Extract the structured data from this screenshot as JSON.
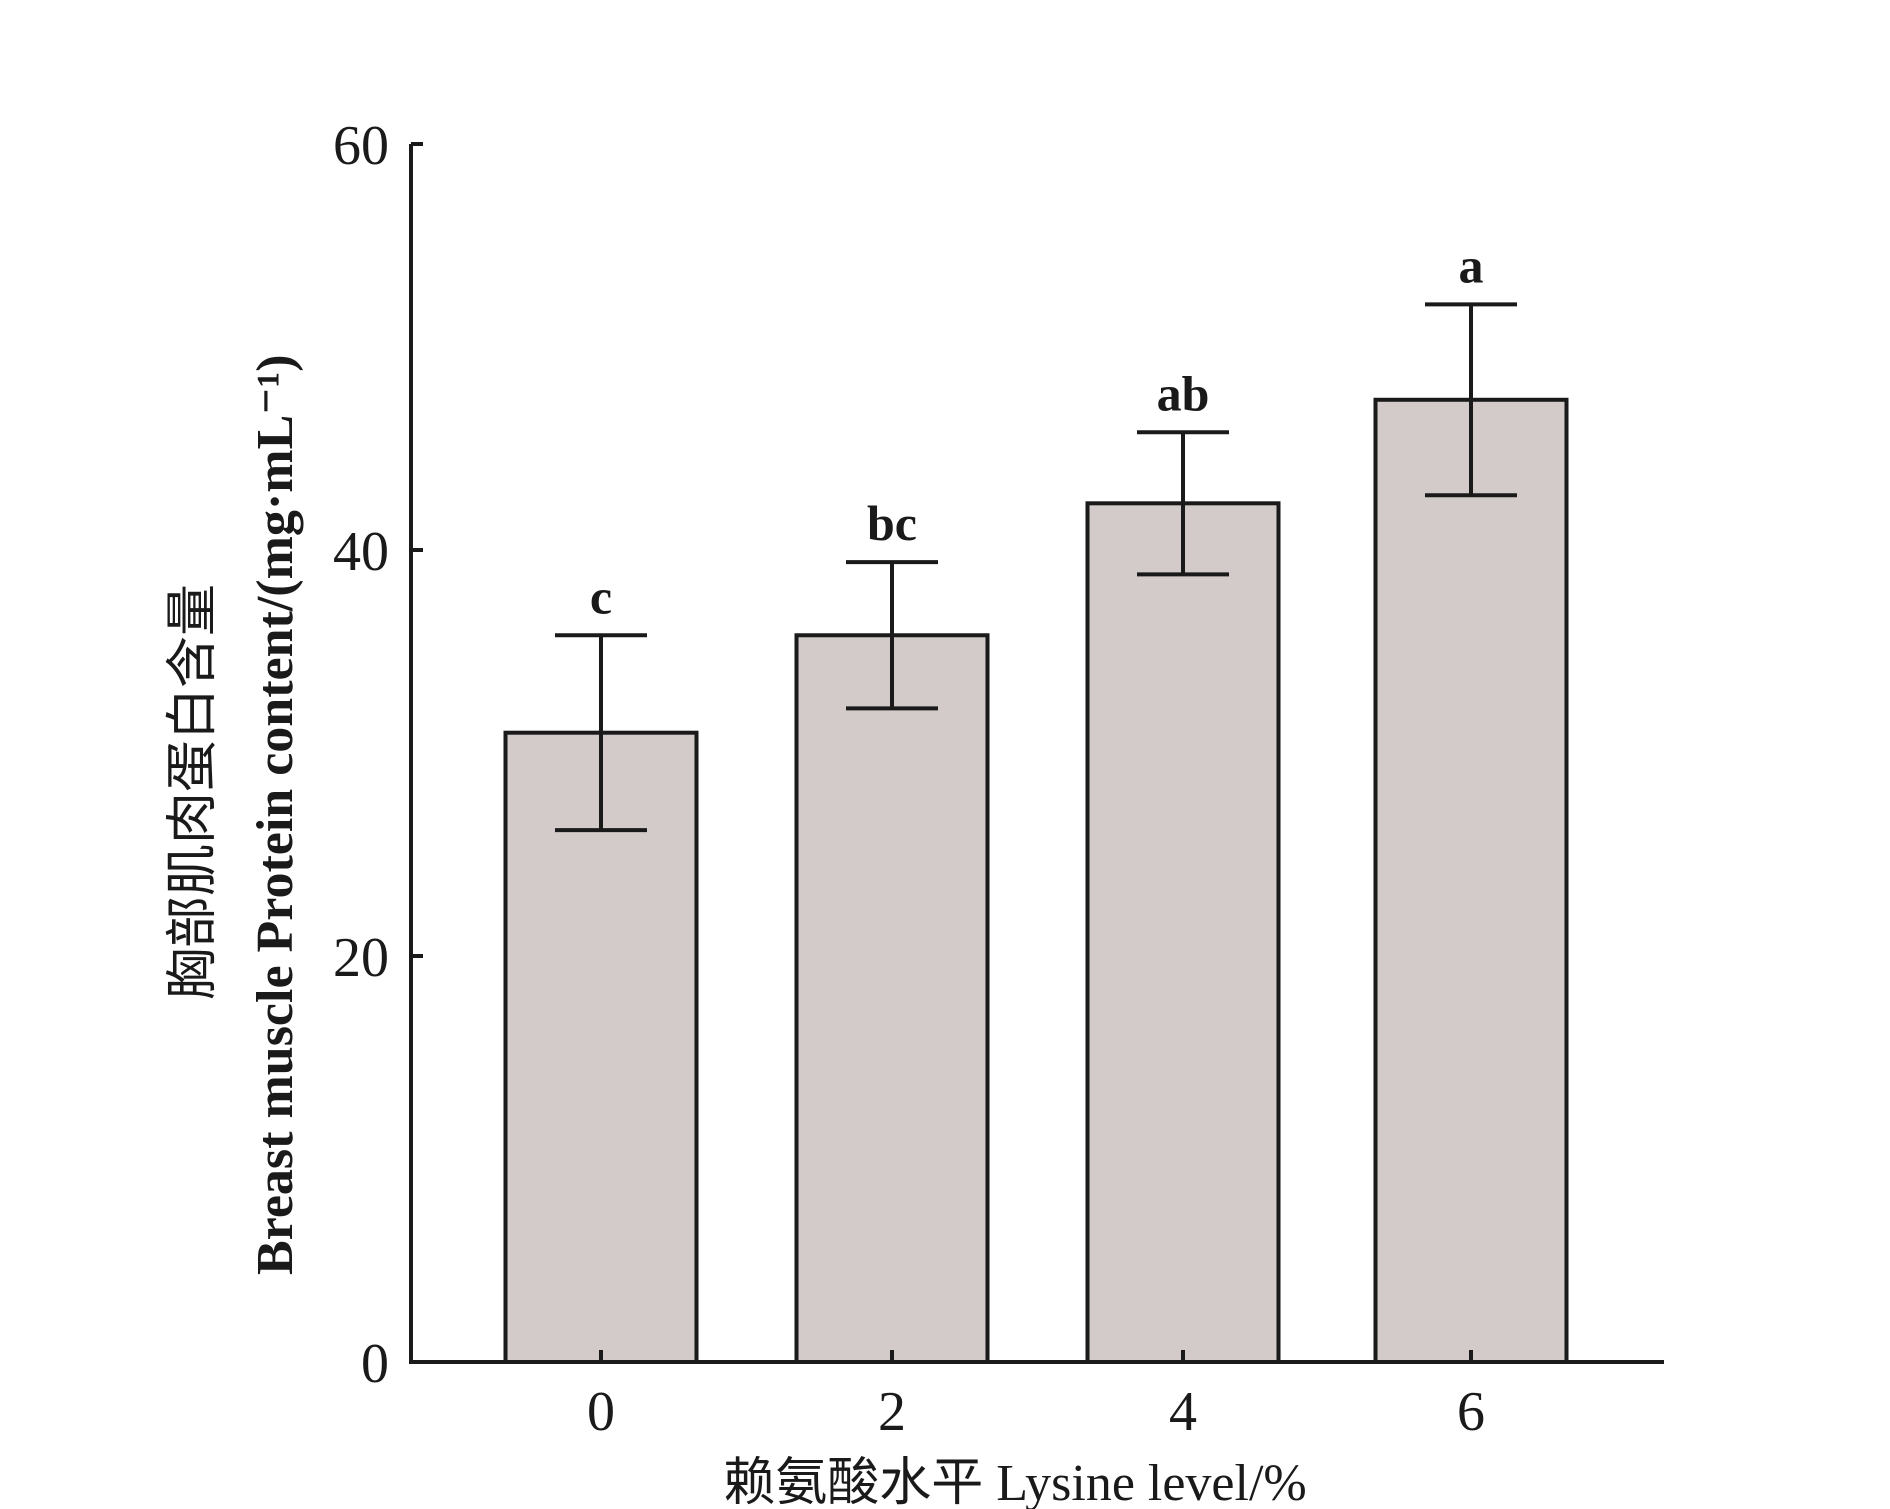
{
  "chart_data": {
    "type": "bar",
    "categories": [
      "0",
      "2",
      "4",
      "6"
    ],
    "values": [
      31.0,
      35.8,
      42.3,
      47.4
    ],
    "errors": [
      4.8,
      3.6,
      3.5,
      4.7
    ],
    "significance_labels": [
      "c",
      "bc",
      "ab",
      "a"
    ],
    "title": "",
    "xlabel": "赖氨酸水平  Lysine level/%",
    "ylabel_cn": "胸部肌肉蛋白含量",
    "ylabel": "Breast muscle Protein content/(mg·mL⁻¹)",
    "ylim": [
      0,
      60
    ],
    "yticks": [
      "0",
      "20",
      "40",
      "60"
    ],
    "grid": false,
    "bar_color": "#d3cbc9",
    "edge_color": "#1a1a1a"
  }
}
